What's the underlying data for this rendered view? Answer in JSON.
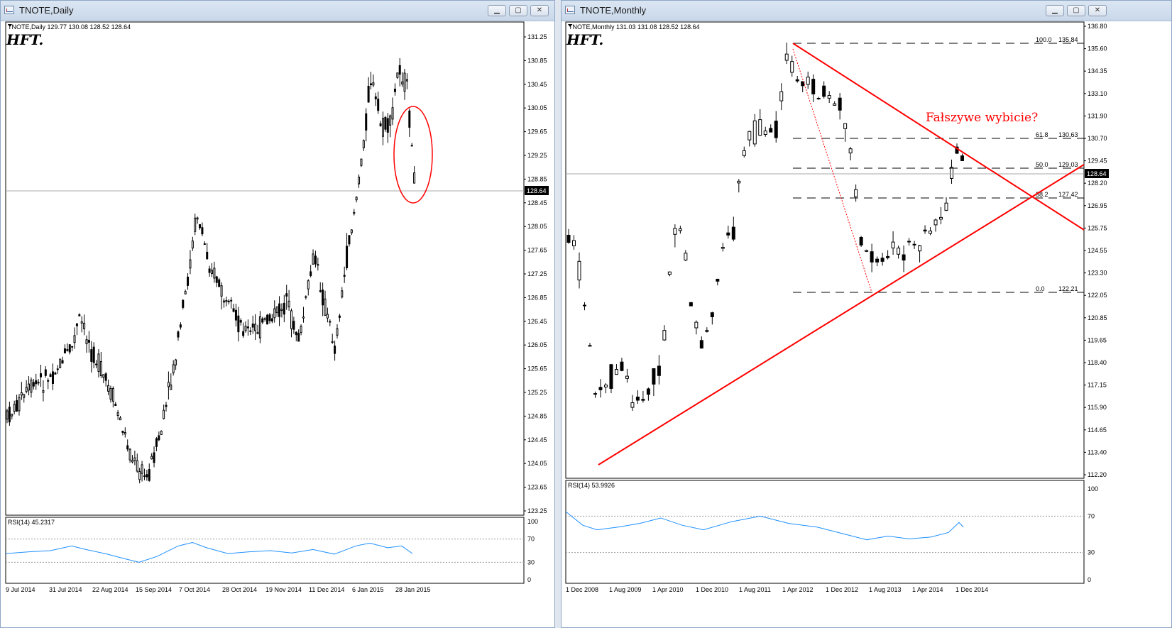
{
  "left_window": {
    "title": "TNOTE,Daily",
    "info_line": "TNOTE,Daily  129.77 130.08 128.52 128.64",
    "logo": "HFT.",
    "price_ticks": [
      "131.25",
      "130.85",
      "130.45",
      "130.05",
      "129.65",
      "129.25",
      "128.85",
      "128.45",
      "128.05",
      "127.65",
      "127.25",
      "126.85",
      "126.45",
      "126.05",
      "125.65",
      "125.25",
      "124.85",
      "124.45",
      "124.05",
      "123.65",
      "123.25"
    ],
    "current_price": "128.64",
    "date_ticks": [
      "9 Jul 2014",
      "31 Jul 2014",
      "22 Aug 2014",
      "15 Sep 2014",
      "7 Oct 2014",
      "28 Oct 2014",
      "19 Nov 2014",
      "11 Dec 2014",
      "6 Jan 2015",
      "28 Jan 2015"
    ],
    "rsi_label": "RSI(14) 45.2317",
    "rsi_ticks": [
      "100",
      "70",
      "30",
      "0"
    ]
  },
  "right_window": {
    "title": "TNOTE,Monthly",
    "info_line": "TNOTE,Monthly  131.03 131.08 128.52 128.64",
    "logo": "HFT.",
    "price_ticks": [
      "136.80",
      "135.60",
      "134.35",
      "133.10",
      "131.90",
      "130.70",
      "129.45",
      "128.20",
      "126.95",
      "125.75",
      "124.55",
      "123.30",
      "122.05",
      "120.85",
      "119.65",
      "118.40",
      "117.15",
      "115.90",
      "114.65",
      "113.40",
      "112.20"
    ],
    "current_price": "128.64",
    "fib_levels": [
      {
        "label": "100.0",
        "value": "135.84"
      },
      {
        "label": "61.8",
        "value": "130.63"
      },
      {
        "label": "50.0",
        "value": "129.03"
      },
      {
        "label": "38.2",
        "value": "127.42"
      },
      {
        "label": "0.0",
        "value": "122.21"
      }
    ],
    "annotation": "Fałszywe wybicie?",
    "date_ticks": [
      "1 Dec 2008",
      "1 Aug 2009",
      "1 Apr 2010",
      "1 Dec 2010",
      "1 Aug 2011",
      "1 Apr 2012",
      "1 Dec 2012",
      "1 Aug 2013",
      "1 Apr 2014",
      "1 Dec 2014"
    ],
    "rsi_label": "RSI(14) 53.9926",
    "rsi_ticks": [
      "100",
      "70",
      "30",
      "0"
    ]
  },
  "colors": {
    "accent_red": "#ff0000",
    "rsi_line": "#1e90ff",
    "grid_dash": "#000000"
  }
}
